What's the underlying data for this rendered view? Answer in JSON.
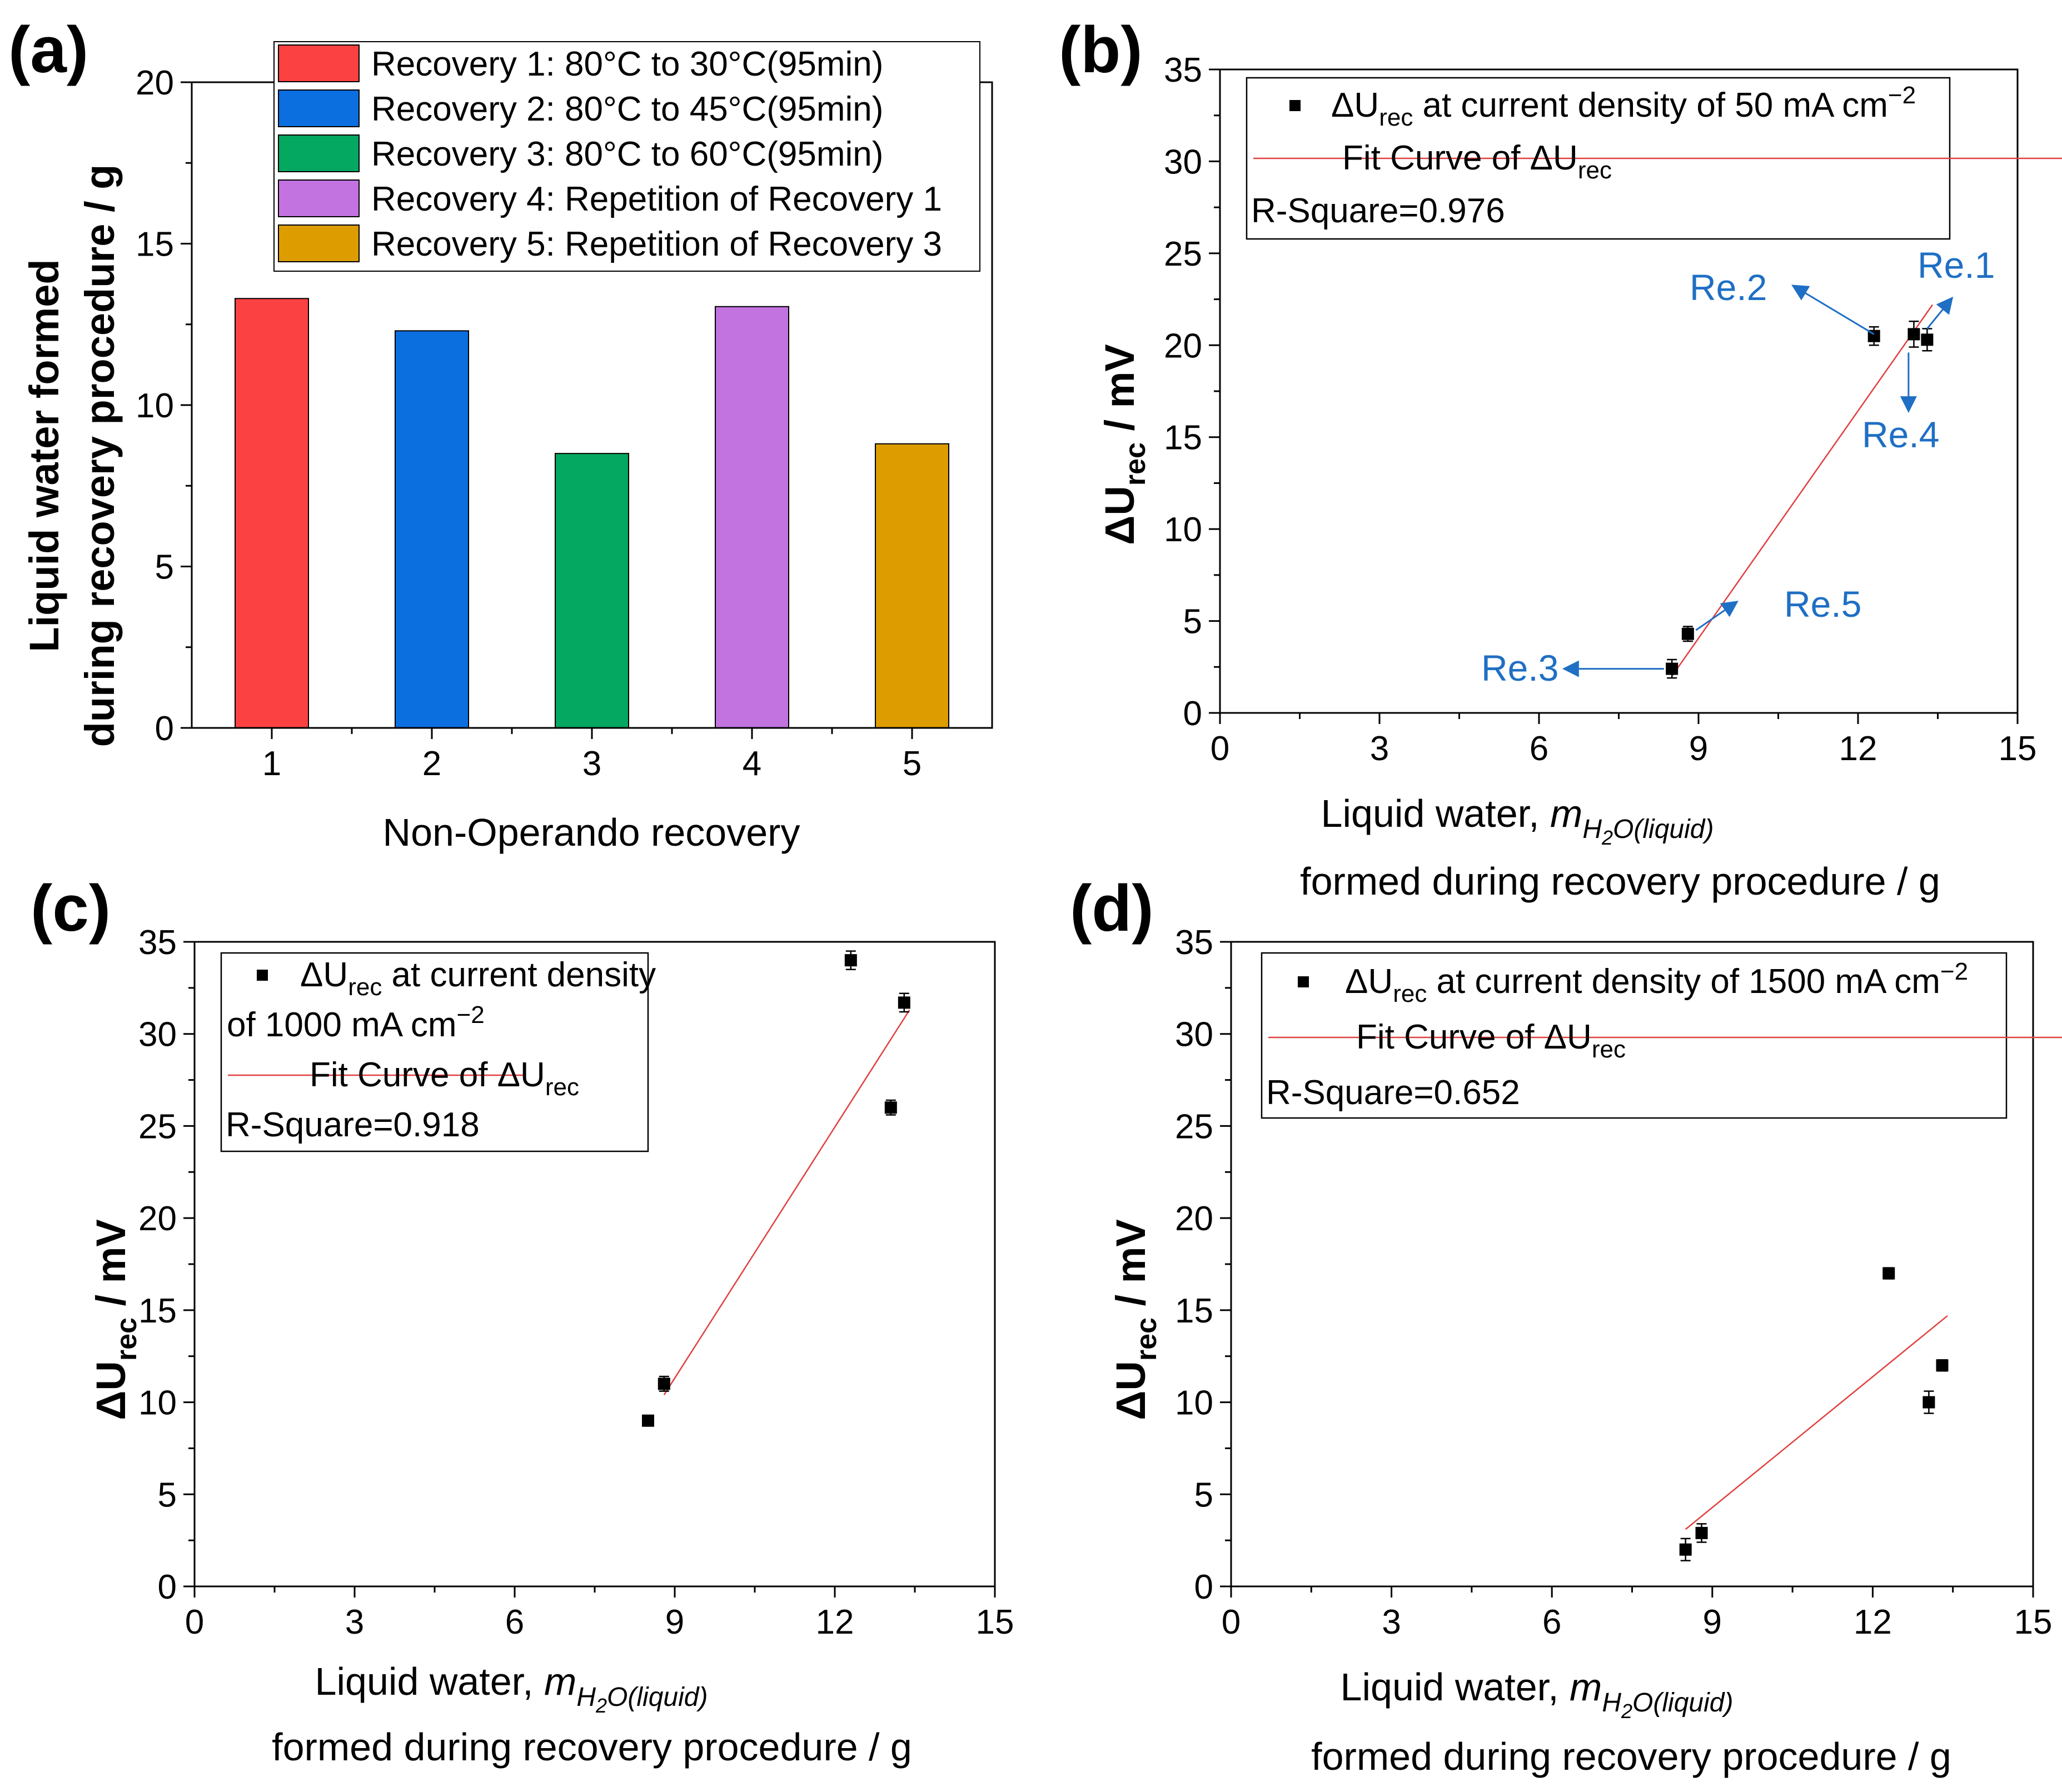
{
  "chart_data": [
    {
      "panel": "(a)",
      "type": "bar",
      "categories": [
        "1",
        "2",
        "3",
        "4",
        "5"
      ],
      "values": [
        13.3,
        12.3,
        8.5,
        13.05,
        8.8
      ],
      "colors": [
        "#fb4141",
        "#0b6fe0",
        "#04a860",
        "#c273e0",
        "#dd9c00"
      ],
      "xlabel": "Non-Operando recovery",
      "ylabel_lines": [
        "Liquid water formed",
        "during recovery procedure / g"
      ],
      "ylim": [
        0,
        20
      ],
      "yticks": [
        "0",
        "5",
        "10",
        "15",
        "20"
      ],
      "legend_position": "top",
      "legend": [
        "Recovery 1: 80°C to 30°C(95min)",
        "Recovery 2: 80°C to 45°C(95min)",
        "Recovery 3: 80°C to 60°C(95min)",
        "Recovery 4: Repetition of Recovery 1",
        "Recovery 5: Repetition of Recovery 3"
      ]
    },
    {
      "panel": "(b)",
      "type": "scatter",
      "series_label": "ΔU",
      "series_sub": "rec",
      "series_rest": " at current density of 50 mA cm",
      "series_sup": "−2",
      "fit_label": "Fit Curve of ΔU",
      "fit_sub": "rec",
      "r_square": "R-Square=0.976",
      "x": [
        13.3,
        12.3,
        8.5,
        13.05,
        8.8
      ],
      "y": [
        20.3,
        20.5,
        2.4,
        20.6,
        4.3
      ],
      "yerr": [
        0.6,
        0.5,
        0.5,
        0.7,
        0.4
      ],
      "fit_line": {
        "x": [
          8.5,
          13.4
        ],
        "y": [
          2.0,
          22.2
        ]
      },
      "xlim": [
        0,
        15
      ],
      "ylim": [
        0,
        35
      ],
      "xticks": [
        "0",
        "3",
        "6",
        "9",
        "12",
        "15"
      ],
      "yticks": [
        "0",
        "5",
        "10",
        "15",
        "20",
        "25",
        "30",
        "35"
      ],
      "annotations": [
        "Re.1",
        "Re.2",
        "Re.3",
        "Re.4",
        "Re.5"
      ],
      "xlabel_line1": "Liquid water, ",
      "xlabel_italic": "m",
      "xlabel_sub_a": "H",
      "xlabel_sub_b": "2",
      "xlabel_sub_c": "O(liquid)",
      "xlabel_line2": "formed during recovery procedure / g",
      "ylabel_main": "ΔU",
      "ylabel_sub": "rec",
      "ylabel_rest": " / mV",
      "legend_position": "top-left"
    },
    {
      "panel": "(c)",
      "type": "scatter",
      "series_label": "ΔU",
      "series_sub": "rec",
      "series_rest": " at current density",
      "series_rest2": "of 1000 mA cm",
      "series_sup": "−2",
      "fit_label": "Fit Curve of ΔU",
      "fit_sub": "rec",
      "r_square": "R-Square=0.918",
      "x": [
        13.3,
        12.3,
        8.5,
        13.05,
        8.8
      ],
      "y": [
        31.7,
        34.0,
        9.0,
        26.0,
        11.0
      ],
      "yerr": [
        0.5,
        0.5,
        0.2,
        0.4,
        0.4
      ],
      "fit_line": {
        "x": [
          8.8,
          13.4
        ],
        "y": [
          10.4,
          31.3
        ]
      },
      "xlim": [
        0,
        15
      ],
      "ylim": [
        0,
        35
      ],
      "xticks": [
        "0",
        "3",
        "6",
        "9",
        "12",
        "15"
      ],
      "yticks": [
        "0",
        "5",
        "10",
        "15",
        "20",
        "25",
        "30",
        "35"
      ],
      "xlabel_line1": "Liquid water, ",
      "xlabel_italic": "m",
      "xlabel_sub_a": "H",
      "xlabel_sub_b": "2",
      "xlabel_sub_c": "O(liquid)",
      "xlabel_line2": "formed during recovery procedure / g",
      "ylabel_main": "ΔU",
      "ylabel_sub": "rec",
      "ylabel_rest": " / mV",
      "legend_position": "top-left"
    },
    {
      "panel": "(d)",
      "type": "scatter",
      "series_label": "ΔU",
      "series_sub": "rec",
      "series_rest": " at current density of 1500 mA cm",
      "series_sup": "−2",
      "fit_label": "Fit Curve of ΔU",
      "fit_sub": "rec",
      "r_square": "R-Square=0.652",
      "x": [
        13.3,
        12.3,
        8.5,
        13.05,
        8.8
      ],
      "y": [
        12.0,
        17.0,
        2.0,
        10.0,
        2.9
      ],
      "yerr": [
        0.3,
        0.3,
        0.6,
        0.6,
        0.5
      ],
      "fit_line": {
        "x": [
          8.5,
          13.4
        ],
        "y": [
          3.1,
          14.7
        ]
      },
      "xlim": [
        0,
        15
      ],
      "ylim": [
        0,
        35
      ],
      "xticks": [
        "0",
        "3",
        "6",
        "9",
        "12",
        "15"
      ],
      "yticks": [
        "0",
        "5",
        "10",
        "15",
        "20",
        "25",
        "30",
        "35"
      ],
      "xlabel_line1": "Liquid water, ",
      "xlabel_italic": "m",
      "xlabel_sub_a": "H",
      "xlabel_sub_b": "2",
      "xlabel_sub_c": "O(liquid)",
      "xlabel_line2": "formed during recovery procedure / g",
      "ylabel_main": "ΔU",
      "ylabel_sub": "rec",
      "ylabel_rest": " / mV",
      "legend_position": "top-left"
    }
  ],
  "colors": {
    "fit": "#e04040",
    "annotation": "#1f6fc4",
    "marker": "#000000"
  }
}
